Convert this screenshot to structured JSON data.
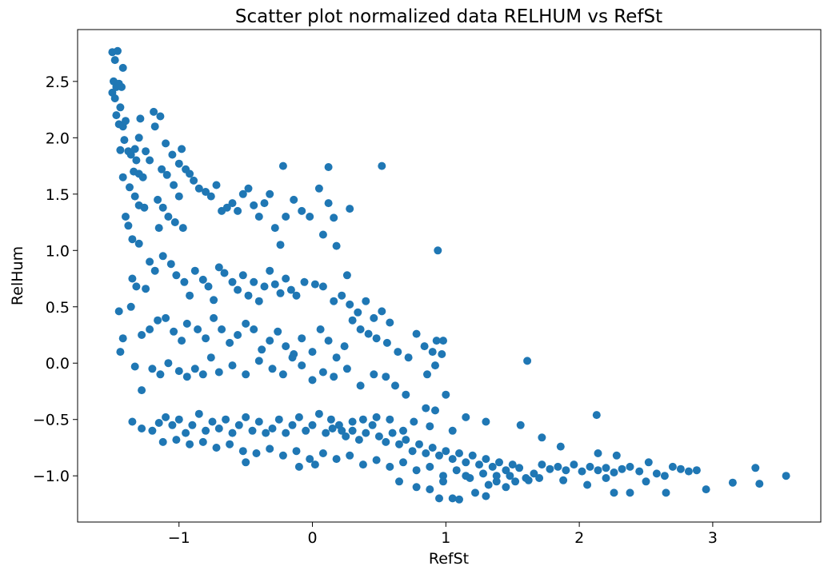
{
  "chart_data": {
    "type": "scatter",
    "title": "Scatter plot normalized data RELHUM vs RefSt",
    "xlabel": "RefSt",
    "ylabel": "RelHum",
    "xlim": [
      -1.76,
      3.81
    ],
    "ylim": [
      -1.41,
      2.96
    ],
    "xticks": [
      -1,
      0,
      1,
      2,
      3
    ],
    "xtick_labels": [
      "−1",
      "0",
      "1",
      "2",
      "3"
    ],
    "yticks": [
      -1.0,
      -0.5,
      0.0,
      0.5,
      1.0,
      1.5,
      2.0,
      2.5
    ],
    "ytick_labels": [
      "−1.0",
      "−0.5",
      "0.0",
      "0.5",
      "1.0",
      "1.5",
      "2.0",
      "2.5"
    ],
    "grid": false,
    "marker_color": "#1f77b4",
    "points": [
      [
        -1.5,
        2.76
      ],
      [
        -1.48,
        2.69
      ],
      [
        -1.46,
        2.77
      ],
      [
        -1.49,
        2.5
      ],
      [
        -1.47,
        2.45
      ],
      [
        -1.5,
        2.4
      ],
      [
        -1.45,
        2.48
      ],
      [
        -1.43,
        2.45
      ],
      [
        -1.48,
        2.35
      ],
      [
        -1.42,
        2.62
      ],
      [
        -1.44,
        2.27
      ],
      [
        -1.47,
        2.2
      ],
      [
        -1.45,
        2.12
      ],
      [
        -1.42,
        2.1
      ],
      [
        -1.4,
        2.15
      ],
      [
        -1.41,
        1.98
      ],
      [
        -1.38,
        1.88
      ],
      [
        -1.36,
        1.85
      ],
      [
        -1.33,
        1.9
      ],
      [
        -1.3,
        2.0
      ],
      [
        -1.29,
        2.17
      ],
      [
        -1.32,
        1.8
      ],
      [
        -1.34,
        1.7
      ],
      [
        -1.3,
        1.68
      ],
      [
        -1.27,
        1.65
      ],
      [
        -1.42,
        1.65
      ],
      [
        -1.37,
        1.56
      ],
      [
        -1.33,
        1.48
      ],
      [
        -1.3,
        1.4
      ],
      [
        -1.26,
        1.38
      ],
      [
        -1.4,
        1.3
      ],
      [
        -1.38,
        1.22
      ],
      [
        -1.35,
        1.1
      ],
      [
        -1.3,
        1.06
      ],
      [
        -1.44,
        1.89
      ],
      [
        -1.25,
        1.88
      ],
      [
        -1.22,
        1.8
      ],
      [
        -1.19,
        2.23
      ],
      [
        -1.14,
        2.19
      ],
      [
        -1.18,
        2.1
      ],
      [
        -1.1,
        1.95
      ],
      [
        -1.05,
        1.85
      ],
      [
        -1.0,
        1.77
      ],
      [
        -0.98,
        1.9
      ],
      [
        -1.13,
        1.72
      ],
      [
        -1.09,
        1.67
      ],
      [
        -1.04,
        1.58
      ],
      [
        -1.0,
        1.48
      ],
      [
        -1.16,
        1.45
      ],
      [
        -1.12,
        1.38
      ],
      [
        -1.08,
        1.3
      ],
      [
        -1.03,
        1.25
      ],
      [
        -0.97,
        1.2
      ],
      [
        -1.15,
        1.2
      ],
      [
        -0.95,
        1.72
      ],
      [
        -0.92,
        1.68
      ],
      [
        -0.89,
        1.62
      ],
      [
        -0.85,
        1.55
      ],
      [
        -0.8,
        1.52
      ],
      [
        -0.76,
        1.48
      ],
      [
        -0.72,
        1.58
      ],
      [
        -0.68,
        1.35
      ],
      [
        -0.64,
        1.38
      ],
      [
        -0.6,
        1.42
      ],
      [
        -0.56,
        1.35
      ],
      [
        -0.52,
        1.5
      ],
      [
        -0.48,
        1.55
      ],
      [
        -0.44,
        1.4
      ],
      [
        -0.4,
        1.3
      ],
      [
        -0.36,
        1.42
      ],
      [
        -0.32,
        1.5
      ],
      [
        -0.28,
        1.2
      ],
      [
        -0.24,
        1.05
      ],
      [
        -0.2,
        1.3
      ],
      [
        -0.14,
        1.45
      ],
      [
        -0.08,
        1.35
      ],
      [
        -0.02,
        1.3
      ],
      [
        0.05,
        1.55
      ],
      [
        0.12,
        1.42
      ],
      [
        0.16,
        1.29
      ],
      [
        -0.22,
        1.75
      ],
      [
        0.12,
        1.74
      ],
      [
        0.52,
        1.75
      ],
      [
        0.28,
        1.37
      ],
      [
        0.08,
        1.14
      ],
      [
        0.18,
        1.04
      ],
      [
        -1.45,
        0.46
      ],
      [
        -1.42,
        0.22
      ],
      [
        -1.36,
        0.5
      ],
      [
        -1.35,
        0.75
      ],
      [
        -1.32,
        0.68
      ],
      [
        -1.25,
        0.66
      ],
      [
        -1.22,
        0.9
      ],
      [
        -1.18,
        0.82
      ],
      [
        -1.12,
        0.95
      ],
      [
        -1.06,
        0.88
      ],
      [
        -1.02,
        0.78
      ],
      [
        -0.96,
        0.72
      ],
      [
        -0.92,
        0.6
      ],
      [
        -0.88,
        0.82
      ],
      [
        -0.82,
        0.74
      ],
      [
        -0.78,
        0.68
      ],
      [
        -0.74,
        0.56
      ],
      [
        -0.7,
        0.85
      ],
      [
        -0.66,
        0.8
      ],
      [
        -0.6,
        0.72
      ],
      [
        -0.56,
        0.65
      ],
      [
        -0.52,
        0.78
      ],
      [
        -0.48,
        0.6
      ],
      [
        -0.44,
        0.72
      ],
      [
        -0.4,
        0.55
      ],
      [
        -0.36,
        0.68
      ],
      [
        -0.32,
        0.82
      ],
      [
        -0.28,
        0.7
      ],
      [
        -0.24,
        0.62
      ],
      [
        -0.2,
        0.75
      ],
      [
        -0.16,
        0.65
      ],
      [
        -0.12,
        0.6
      ],
      [
        -0.06,
        0.72
      ],
      [
        0.02,
        0.7
      ],
      [
        0.08,
        0.68
      ],
      [
        0.16,
        0.55
      ],
      [
        0.22,
        0.6
      ],
      [
        0.28,
        0.52
      ],
      [
        0.34,
        0.45
      ],
      [
        0.4,
        0.55
      ],
      [
        0.46,
        0.4
      ],
      [
        0.52,
        0.46
      ],
      [
        0.58,
        0.36
      ],
      [
        0.26,
        0.78
      ],
      [
        0.94,
        1.0
      ],
      [
        -1.28,
        0.25
      ],
      [
        -1.22,
        0.3
      ],
      [
        -1.16,
        0.38
      ],
      [
        -1.1,
        0.4
      ],
      [
        -1.04,
        0.28
      ],
      [
        -0.98,
        0.2
      ],
      [
        -0.94,
        0.35
      ],
      [
        -0.86,
        0.3
      ],
      [
        -0.8,
        0.22
      ],
      [
        -0.74,
        0.4
      ],
      [
        -0.68,
        0.3
      ],
      [
        -0.62,
        0.18
      ],
      [
        -0.56,
        0.25
      ],
      [
        -0.5,
        0.35
      ],
      [
        -0.44,
        0.3
      ],
      [
        -0.38,
        0.12
      ],
      [
        -0.32,
        0.2
      ],
      [
        -0.26,
        0.28
      ],
      [
        -0.2,
        0.15
      ],
      [
        -0.14,
        0.08
      ],
      [
        -0.08,
        0.22
      ],
      [
        0.0,
        0.1
      ],
      [
        0.06,
        0.3
      ],
      [
        0.12,
        0.2
      ],
      [
        0.18,
        0.05
      ],
      [
        0.24,
        0.15
      ],
      [
        0.3,
        0.38
      ],
      [
        0.36,
        0.3
      ],
      [
        0.42,
        0.26
      ],
      [
        0.48,
        0.22
      ],
      [
        0.56,
        0.18
      ],
      [
        0.64,
        0.1
      ],
      [
        0.72,
        0.05
      ],
      [
        0.78,
        0.26
      ],
      [
        0.84,
        0.15
      ],
      [
        0.9,
        0.1
      ],
      [
        0.93,
        0.2
      ],
      [
        0.97,
        0.08
      ],
      [
        0.98,
        0.2
      ],
      [
        1.61,
        0.02
      ],
      [
        -1.44,
        0.1
      ],
      [
        -1.33,
        -0.03
      ],
      [
        -1.28,
        -0.24
      ],
      [
        -1.2,
        -0.05
      ],
      [
        -1.14,
        -0.1
      ],
      [
        -1.08,
        0.0
      ],
      [
        -1.0,
        -0.07
      ],
      [
        -0.94,
        -0.12
      ],
      [
        -0.88,
        -0.05
      ],
      [
        -0.82,
        -0.1
      ],
      [
        -0.76,
        0.05
      ],
      [
        -0.7,
        -0.08
      ],
      [
        -0.6,
        -0.02
      ],
      [
        -0.5,
        -0.1
      ],
      [
        -0.4,
        0.02
      ],
      [
        -0.3,
        -0.05
      ],
      [
        -0.22,
        -0.1
      ],
      [
        -0.15,
        0.05
      ],
      [
        -0.08,
        -0.02
      ],
      [
        0.0,
        -0.15
      ],
      [
        0.08,
        -0.08
      ],
      [
        0.16,
        -0.12
      ],
      [
        0.26,
        -0.05
      ],
      [
        0.36,
        -0.2
      ],
      [
        0.46,
        -0.1
      ],
      [
        0.55,
        -0.12
      ],
      [
        0.62,
        -0.2
      ],
      [
        0.7,
        -0.28
      ],
      [
        0.86,
        -0.1
      ],
      [
        0.92,
        -0.02
      ],
      [
        1.0,
        -0.28
      ],
      [
        -1.35,
        -0.52
      ],
      [
        -1.28,
        -0.58
      ],
      [
        -1.2,
        -0.6
      ],
      [
        -1.15,
        -0.53
      ],
      [
        -1.1,
        -0.48
      ],
      [
        -1.05,
        -0.55
      ],
      [
        -1.0,
        -0.5
      ],
      [
        -0.95,
        -0.62
      ],
      [
        -0.9,
        -0.55
      ],
      [
        -0.85,
        -0.45
      ],
      [
        -0.8,
        -0.6
      ],
      [
        -0.75,
        -0.52
      ],
      [
        -0.7,
        -0.58
      ],
      [
        -0.65,
        -0.5
      ],
      [
        -0.6,
        -0.62
      ],
      [
        -0.55,
        -0.55
      ],
      [
        -0.5,
        -0.48
      ],
      [
        -0.45,
        -0.6
      ],
      [
        -0.4,
        -0.52
      ],
      [
        -0.35,
        -0.62
      ],
      [
        -0.3,
        -0.58
      ],
      [
        -0.25,
        -0.5
      ],
      [
        -0.2,
        -0.62
      ],
      [
        -0.15,
        -0.55
      ],
      [
        -0.1,
        -0.48
      ],
      [
        -0.05,
        -0.6
      ],
      [
        0.0,
        -0.55
      ],
      [
        0.05,
        -0.45
      ],
      [
        0.1,
        -0.62
      ],
      [
        0.15,
        -0.58
      ],
      [
        0.2,
        -0.55
      ],
      [
        0.25,
        -0.65
      ],
      [
        0.3,
        -0.6
      ],
      [
        0.35,
        -0.68
      ],
      [
        0.4,
        -0.62
      ],
      [
        0.45,
        -0.55
      ],
      [
        0.5,
        -0.65
      ],
      [
        0.55,
        -0.7
      ],
      [
        0.6,
        -0.62
      ],
      [
        0.65,
        -0.72
      ],
      [
        0.7,
        -0.68
      ],
      [
        0.75,
        -0.78
      ],
      [
        0.8,
        -0.72
      ],
      [
        0.85,
        -0.8
      ],
      [
        0.9,
        -0.75
      ],
      [
        0.95,
        -0.82
      ],
      [
        1.0,
        -0.78
      ],
      [
        1.05,
        -0.85
      ],
      [
        1.1,
        -0.8
      ],
      [
        1.15,
        -0.88
      ],
      [
        1.2,
        -0.82
      ],
      [
        1.25,
        -0.9
      ],
      [
        1.3,
        -0.85
      ],
      [
        1.35,
        -0.92
      ],
      [
        1.4,
        -0.88
      ],
      [
        1.45,
        -0.95
      ],
      [
        1.5,
        -0.9
      ],
      [
        1.55,
        -0.93
      ],
      [
        -1.12,
        -0.7
      ],
      [
        -1.02,
        -0.68
      ],
      [
        -0.92,
        -0.72
      ],
      [
        -0.82,
        -0.7
      ],
      [
        -0.72,
        -0.75
      ],
      [
        -0.62,
        -0.72
      ],
      [
        -0.52,
        -0.78
      ],
      [
        -0.42,
        -0.8
      ],
      [
        -0.32,
        -0.76
      ],
      [
        -0.22,
        -0.82
      ],
      [
        -0.12,
        -0.78
      ],
      [
        -0.02,
        -0.85
      ],
      [
        0.08,
        -0.8
      ],
      [
        0.18,
        -0.85
      ],
      [
        0.28,
        -0.82
      ],
      [
        0.38,
        -0.9
      ],
      [
        0.48,
        -0.86
      ],
      [
        0.58,
        -0.92
      ],
      [
        0.68,
        -0.88
      ],
      [
        0.78,
        -0.95
      ],
      [
        0.88,
        -0.92
      ],
      [
        0.98,
        -1.0
      ],
      [
        1.08,
        -0.95
      ],
      [
        1.18,
        -1.02
      ],
      [
        1.28,
        -0.98
      ],
      [
        1.38,
        -1.05
      ],
      [
        1.48,
        -1.0
      ],
      [
        -0.5,
        -0.88
      ],
      [
        -0.1,
        -0.92
      ],
      [
        0.02,
        -0.9
      ],
      [
        0.65,
        -1.05
      ],
      [
        0.78,
        -1.1
      ],
      [
        0.88,
        -1.12
      ],
      [
        0.95,
        -1.2
      ],
      [
        0.98,
        -1.05
      ],
      [
        1.05,
        -1.2
      ],
      [
        1.1,
        -1.21
      ],
      [
        1.15,
        -1.0
      ],
      [
        1.22,
        -1.15
      ],
      [
        1.3,
        -1.18
      ],
      [
        1.38,
        -1.0
      ],
      [
        1.45,
        -1.1
      ],
      [
        1.52,
        -1.05
      ],
      [
        1.6,
        -1.02
      ],
      [
        1.66,
        -0.98
      ],
      [
        1.72,
        -0.9
      ],
      [
        1.78,
        -0.94
      ],
      [
        1.84,
        -0.92
      ],
      [
        1.9,
        -0.95
      ],
      [
        1.96,
        -0.9
      ],
      [
        2.02,
        -0.96
      ],
      [
        2.08,
        -0.92
      ],
      [
        2.14,
        -0.95
      ],
      [
        2.2,
        -0.93
      ],
      [
        2.26,
        -0.97
      ],
      [
        2.32,
        -0.94
      ],
      [
        2.38,
        -0.92
      ],
      [
        2.45,
        -0.96
      ],
      [
        2.52,
        -0.88
      ],
      [
        2.58,
        -0.98
      ],
      [
        2.64,
        -1.0
      ],
      [
        2.7,
        -0.92
      ],
      [
        2.76,
        -0.94
      ],
      [
        2.82,
        -0.96
      ],
      [
        2.88,
        -0.95
      ],
      [
        2.5,
        -1.05
      ],
      [
        2.06,
        -1.08
      ],
      [
        2.2,
        -1.02
      ],
      [
        2.26,
        -1.15
      ],
      [
        2.38,
        -1.15
      ],
      [
        2.65,
        -1.15
      ],
      [
        2.95,
        -1.12
      ],
      [
        3.15,
        -1.06
      ],
      [
        3.32,
        -0.93
      ],
      [
        3.35,
        -1.07
      ],
      [
        3.55,
        -1.0
      ],
      [
        1.88,
        -1.04
      ],
      [
        1.7,
        -1.02
      ],
      [
        1.62,
        -1.04
      ],
      [
        1.32,
        -1.08
      ],
      [
        1.56,
        -0.55
      ],
      [
        1.72,
        -0.66
      ],
      [
        1.86,
        -0.74
      ],
      [
        2.13,
        -0.46
      ],
      [
        2.14,
        -0.8
      ],
      [
        2.28,
        -0.82
      ],
      [
        1.3,
        -0.52
      ],
      [
        1.15,
        -0.48
      ],
      [
        1.05,
        -0.6
      ],
      [
        0.88,
        -0.56
      ],
      [
        0.76,
        -0.52
      ],
      [
        0.68,
        -0.6
      ],
      [
        0.58,
        -0.5
      ],
      [
        0.48,
        -0.48
      ],
      [
        0.38,
        -0.5
      ],
      [
        0.3,
        -0.52
      ],
      [
        0.22,
        -0.6
      ],
      [
        0.14,
        -0.5
      ],
      [
        0.92,
        -0.42
      ],
      [
        0.85,
        -0.4
      ]
    ]
  }
}
